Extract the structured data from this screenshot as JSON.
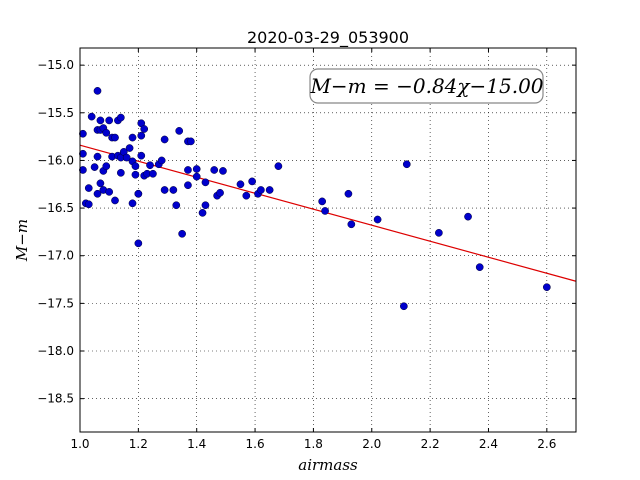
{
  "chart_data": {
    "type": "scatter",
    "title": "2020-03-29_053900",
    "xlabel": "airmass",
    "ylabel": "M−m",
    "xlim": [
      1.0,
      2.7
    ],
    "ylim": [
      -18.85,
      -14.82
    ],
    "y_inverted": true,
    "grid": "dotted",
    "x_ticks": [
      1.0,
      1.2,
      1.4,
      1.6,
      1.8,
      2.0,
      2.2,
      2.4,
      2.6
    ],
    "x_tick_labels": [
      "1.0",
      "1.2",
      "1.4",
      "1.6",
      "1.8",
      "2.0",
      "2.2",
      "2.4",
      "2.6"
    ],
    "y_ticks": [
      -15.0,
      -15.5,
      -16.0,
      -16.5,
      -17.0,
      -17.5,
      -18.0,
      -18.5
    ],
    "y_tick_labels": [
      "−15.0",
      "−15.5",
      "−16.0",
      "−16.5",
      "−17.0",
      "−17.5",
      "−18.0",
      "−18.5"
    ],
    "annotation": "M−m = −0.84χ−15.00",
    "fit": {
      "slope": -0.84,
      "intercept": -15.0,
      "color": "#dd0000"
    },
    "point_color": "#0000cc",
    "points": [
      [
        1.01,
        -15.72
      ],
      [
        1.01,
        -15.93
      ],
      [
        1.01,
        -16.1
      ],
      [
        1.02,
        -16.45
      ],
      [
        1.03,
        -16.46
      ],
      [
        1.03,
        -16.29
      ],
      [
        1.04,
        -15.54
      ],
      [
        1.05,
        -16.07
      ],
      [
        1.06,
        -15.27
      ],
      [
        1.06,
        -15.68
      ],
      [
        1.06,
        -15.96
      ],
      [
        1.06,
        -16.35
      ],
      [
        1.07,
        -15.58
      ],
      [
        1.07,
        -15.68
      ],
      [
        1.07,
        -16.24
      ],
      [
        1.08,
        -15.66
      ],
      [
        1.08,
        -16.11
      ],
      [
        1.08,
        -16.31
      ],
      [
        1.09,
        -15.71
      ],
      [
        1.09,
        -16.06
      ],
      [
        1.1,
        -15.58
      ],
      [
        1.1,
        -16.33
      ],
      [
        1.11,
        -15.76
      ],
      [
        1.11,
        -15.96
      ],
      [
        1.12,
        -15.76
      ],
      [
        1.12,
        -16.42
      ],
      [
        1.13,
        -15.58
      ],
      [
        1.13,
        -15.95
      ],
      [
        1.14,
        -15.55
      ],
      [
        1.14,
        -15.97
      ],
      [
        1.14,
        -16.13
      ],
      [
        1.15,
        -15.91
      ],
      [
        1.16,
        -15.97
      ],
      [
        1.17,
        -15.87
      ],
      [
        1.18,
        -15.76
      ],
      [
        1.18,
        -16.01
      ],
      [
        1.18,
        -16.45
      ],
      [
        1.19,
        -16.15
      ],
      [
        1.19,
        -16.06
      ],
      [
        1.2,
        -16.35
      ],
      [
        1.2,
        -16.35
      ],
      [
        1.2,
        -16.87
      ],
      [
        1.21,
        -15.61
      ],
      [
        1.21,
        -15.74
      ],
      [
        1.21,
        -15.95
      ],
      [
        1.22,
        -16.16
      ],
      [
        1.22,
        -15.67
      ],
      [
        1.23,
        -16.14
      ],
      [
        1.24,
        -16.05
      ],
      [
        1.25,
        -16.14
      ],
      [
        1.27,
        -16.04
      ],
      [
        1.28,
        -16.0
      ],
      [
        1.29,
        -15.78
      ],
      [
        1.29,
        -16.31
      ],
      [
        1.32,
        -16.31
      ],
      [
        1.33,
        -16.47
      ],
      [
        1.34,
        -15.69
      ],
      [
        1.35,
        -16.77
      ],
      [
        1.37,
        -16.1
      ],
      [
        1.37,
        -16.26
      ],
      [
        1.37,
        -15.8
      ],
      [
        1.38,
        -15.8
      ],
      [
        1.4,
        -16.09
      ],
      [
        1.4,
        -16.17
      ],
      [
        1.42,
        -16.55
      ],
      [
        1.43,
        -16.47
      ],
      [
        1.43,
        -16.23
      ],
      [
        1.46,
        -16.1
      ],
      [
        1.47,
        -16.37
      ],
      [
        1.48,
        -16.34
      ],
      [
        1.49,
        -16.11
      ],
      [
        1.55,
        -16.25
      ],
      [
        1.57,
        -16.37
      ],
      [
        1.59,
        -16.22
      ],
      [
        1.61,
        -16.35
      ],
      [
        1.62,
        -16.31
      ],
      [
        1.65,
        -16.31
      ],
      [
        1.68,
        -16.06
      ],
      [
        1.83,
        -16.43
      ],
      [
        1.84,
        -16.53
      ],
      [
        1.92,
        -16.35
      ],
      [
        1.93,
        -16.67
      ],
      [
        2.02,
        -16.62
      ],
      [
        2.11,
        -17.53
      ],
      [
        2.12,
        -16.04
      ],
      [
        2.23,
        -16.76
      ],
      [
        2.33,
        -16.59
      ],
      [
        2.37,
        -17.12
      ],
      [
        2.6,
        -17.33
      ]
    ]
  }
}
